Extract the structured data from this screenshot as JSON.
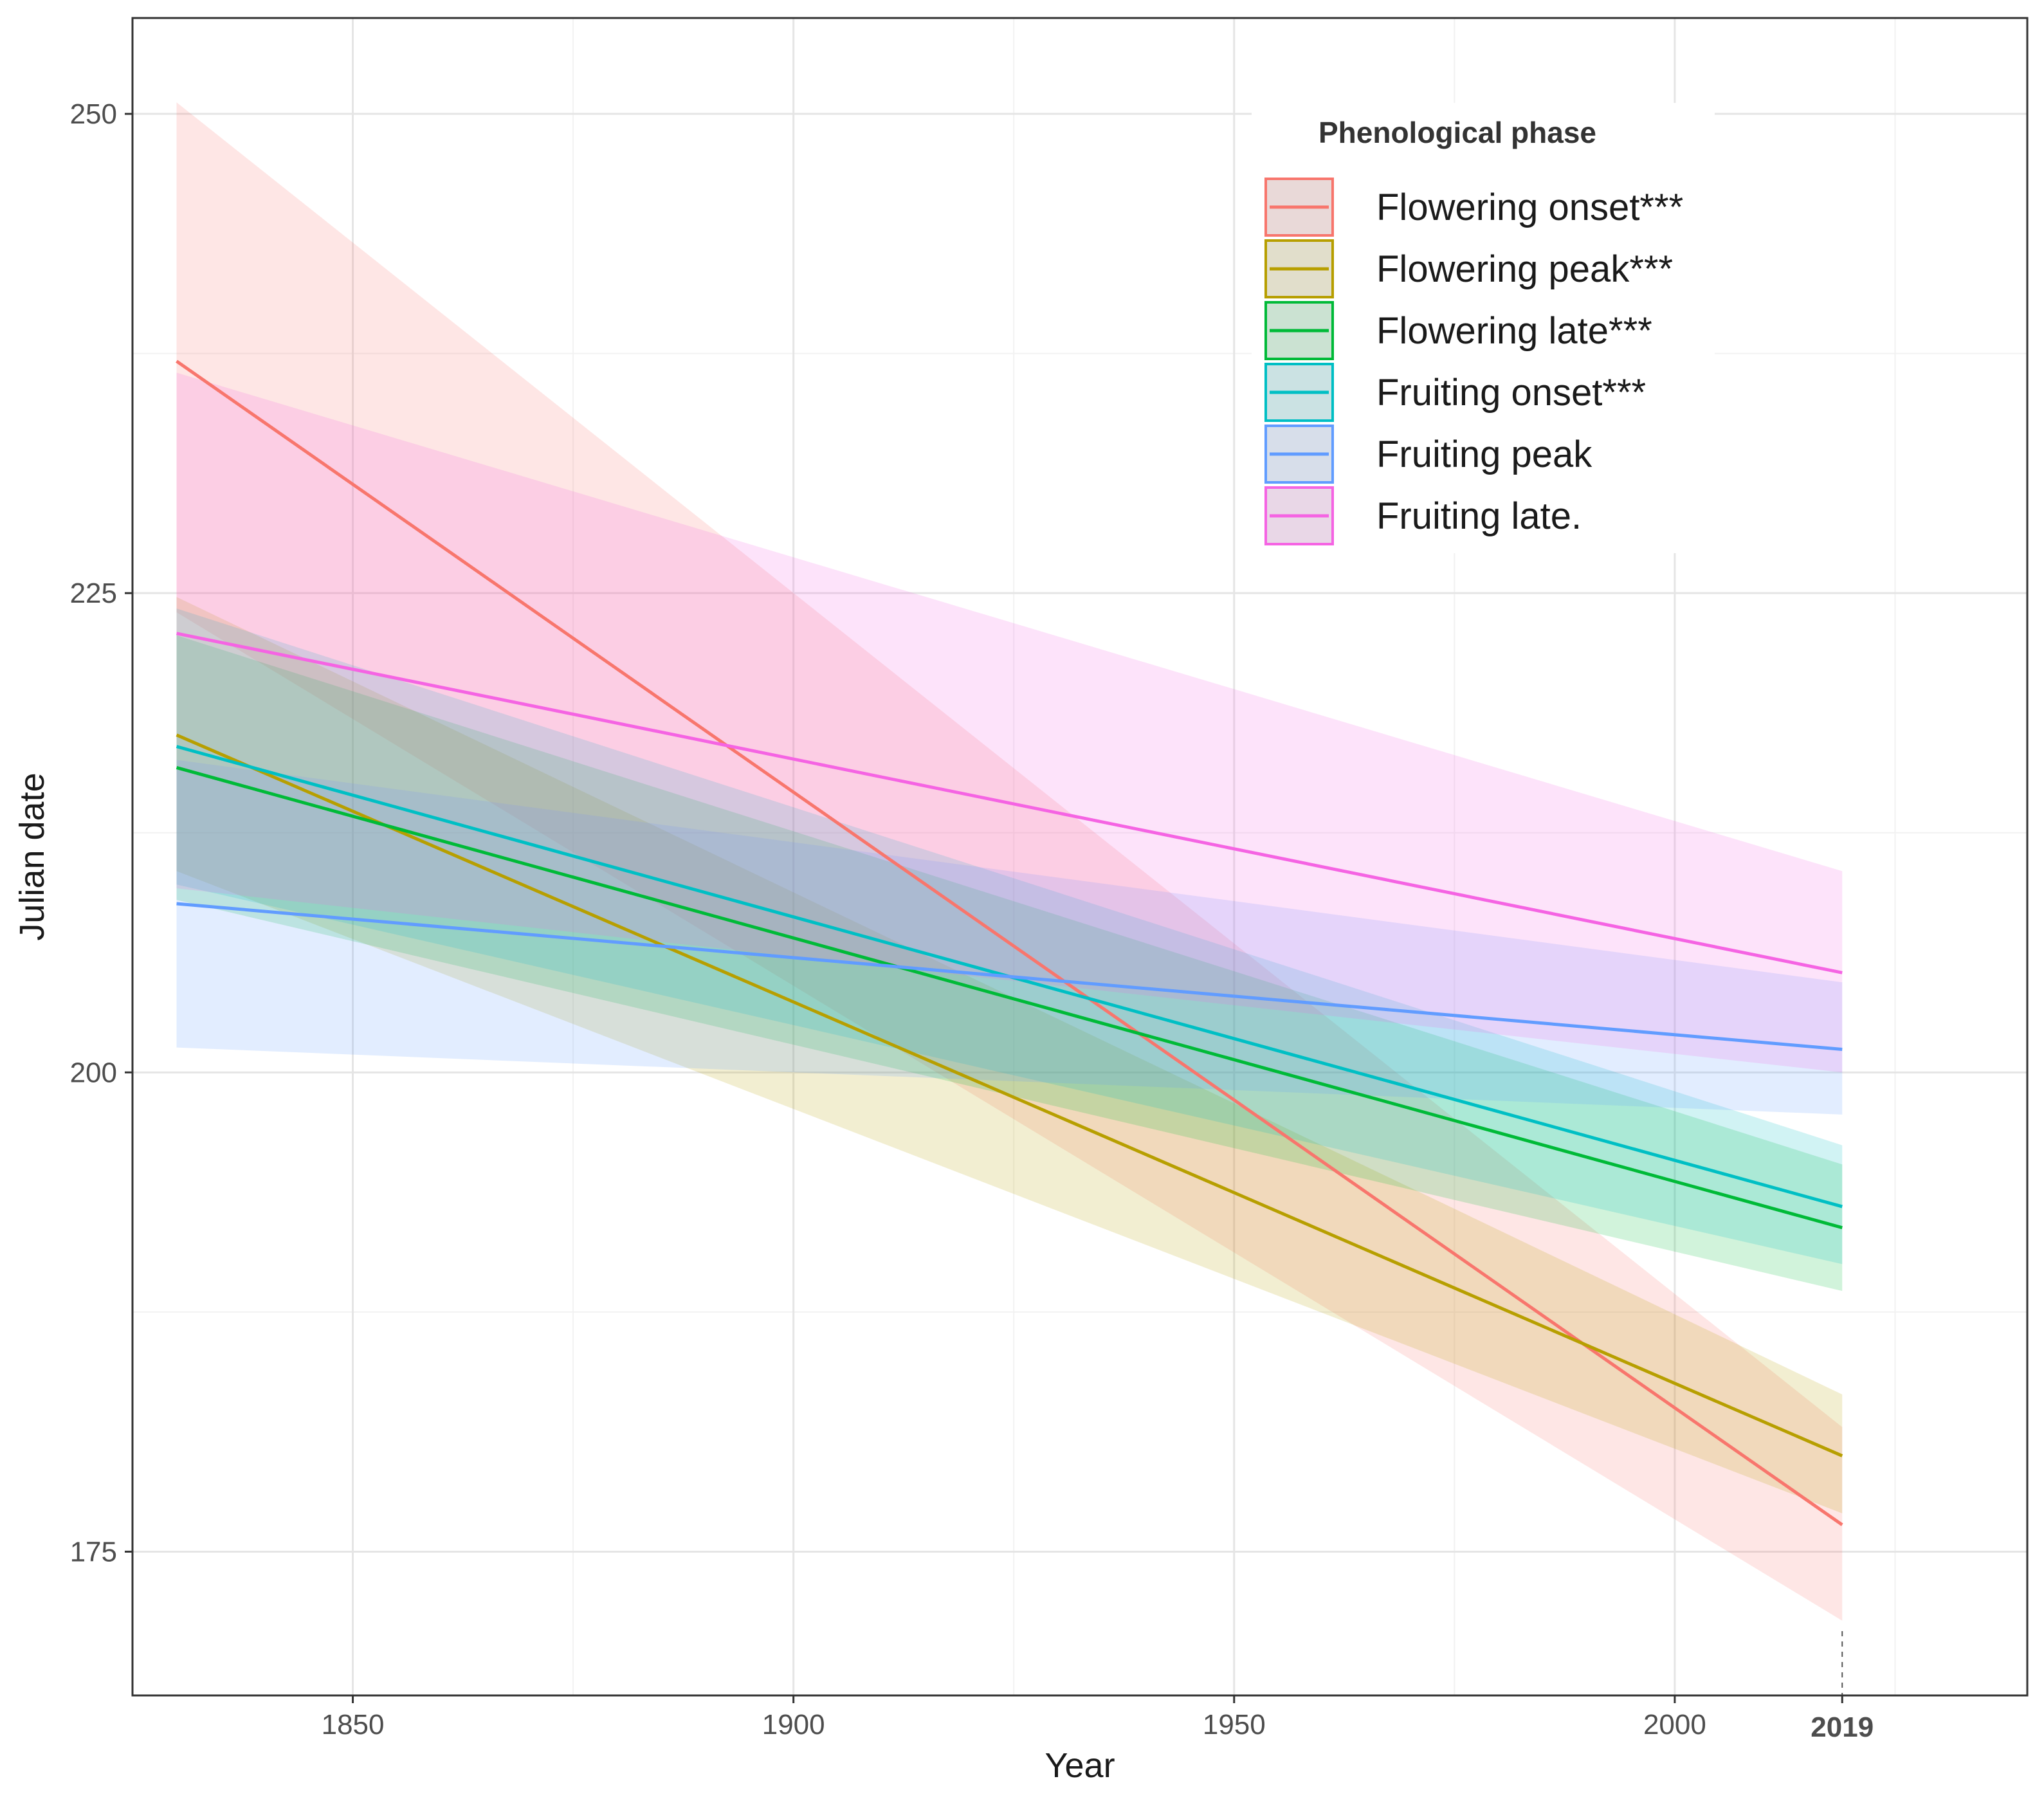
{
  "chart_data": {
    "type": "line",
    "subtype": "regression lines with confidence bands",
    "xlabel": "Year",
    "ylabel": "Julian date",
    "xlim": [
      1825,
      2040
    ],
    "ylim": [
      167.5,
      255
    ],
    "x_ticks": [
      1850,
      1900,
      1950,
      2000
    ],
    "x_ticks_labels": [
      "1850",
      "1900",
      "1950",
      "2000"
    ],
    "x_minor_ticks": [
      1825,
      1875,
      1925,
      1975,
      2025
    ],
    "y_ticks": [
      175,
      200,
      225,
      250
    ],
    "y_ticks_labels": [
      "175",
      "200",
      "225",
      "250"
    ],
    "y_minor_ticks": [
      187.5,
      212.5,
      237.5
    ],
    "reference_line": {
      "x": 2019,
      "label": "2019",
      "style": "dashed"
    },
    "grid": true,
    "legend": {
      "title": "Phenological phase",
      "position": "top-right"
    },
    "series": [
      {
        "name": "Flowering onset***",
        "color": "#F8766D",
        "x": [
          1830,
          2019
        ],
        "y": [
          237.1,
          176.4
        ],
        "lower": [
          224,
          171.4
        ],
        "upper": [
          250.6,
          181.5
        ]
      },
      {
        "name": "Flowering peak***",
        "color": "#B79F00",
        "x": [
          1830,
          2019
        ],
        "y": [
          217.6,
          180.0
        ],
        "lower": [
          210.5,
          177.0
        ],
        "upper": [
          224.8,
          183.2
        ]
      },
      {
        "name": "Flowering late***",
        "color": "#00BA38",
        "x": [
          1830,
          2019
        ],
        "y": [
          215.9,
          191.9
        ],
        "lower": [
          209.0,
          188.6
        ],
        "upper": [
          222.8,
          195.2
        ]
      },
      {
        "name": "Fruiting onset***",
        "color": "#00BFC4",
        "x": [
          1830,
          2019
        ],
        "y": [
          217.0,
          193.0
        ],
        "lower": [
          209.8,
          190.0
        ],
        "upper": [
          224.2,
          196.2
        ]
      },
      {
        "name": "Fruiting peak",
        "color": "#619CFF",
        "x": [
          1830,
          2019
        ],
        "y": [
          208.8,
          201.2
        ],
        "lower": [
          201.3,
          197.8
        ],
        "upper": [
          216.3,
          204.7
        ]
      },
      {
        "name": "Fruiting late.",
        "color": "#F564E3",
        "x": [
          1830,
          2019
        ],
        "y": [
          222.9,
          205.2
        ],
        "lower": [
          209.6,
          200.0
        ],
        "upper": [
          236.5,
          210.5
        ]
      }
    ]
  }
}
